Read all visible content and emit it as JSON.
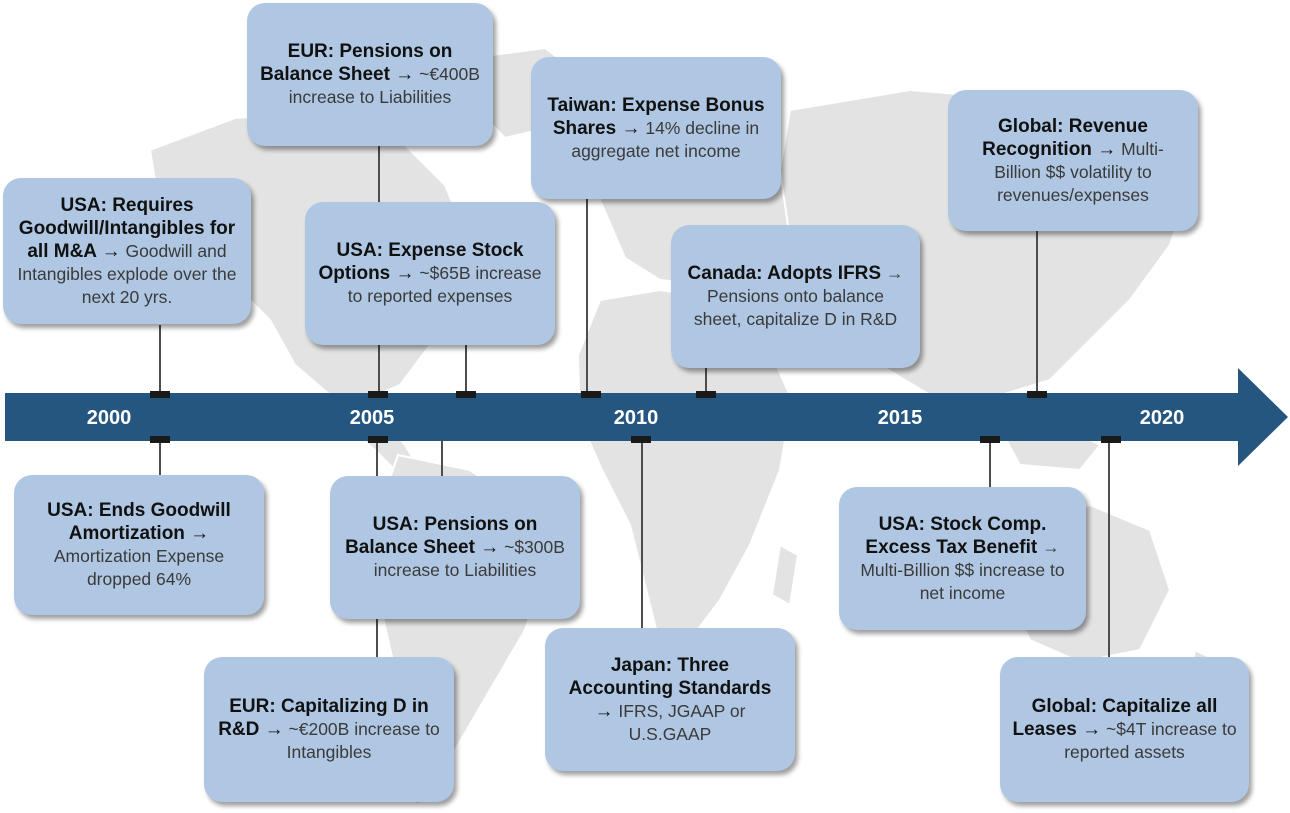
{
  "timeline": {
    "axis_color": "#245680",
    "years": [
      "2000",
      "2005",
      "2010",
      "2015",
      "2020"
    ]
  },
  "events": {
    "eur_pensions": {
      "headline": "EUR: Pensions on Balance Sheet →",
      "detail": " ~€400B increase to Liabilities"
    },
    "taiwan_bonus": {
      "headline": "Taiwan: Expense Bonus Shares →",
      "detail": " 14% decline in aggregate net income"
    },
    "global_revenue": {
      "headline": "Global: Revenue Recognition →",
      "detail": " Multi-Billion $$ volatility to revenues/expenses"
    },
    "usa_goodwill": {
      "headline": "USA: Requires Goodwill/Intangibles for all M&A →",
      "detail": " Goodwill and Intangibles explode over the next 20 yrs."
    },
    "usa_stock_options": {
      "headline": "USA: Expense Stock Options →",
      "detail": " ~$65B increase to reported expenses"
    },
    "canada_ifrs": {
      "headline": "Canada: Adopts IFRS",
      "detail": " → Pensions onto balance sheet, capitalize D in R&D"
    },
    "usa_amortization": {
      "headline": "USA: Ends Goodwill Amortization →",
      "detail": " Amortization Expense dropped 64%"
    },
    "usa_pensions": {
      "headline": "USA: Pensions on Balance Sheet →",
      "detail": " ~$300B increase to Liabilities"
    },
    "usa_stock_comp": {
      "headline": "USA: Stock Comp. Excess Tax Benefit",
      "detail": " → Multi-Billion $$ increase to net income"
    },
    "eur_rd": {
      "headline": "EUR: Capitalizing D in R&D →",
      "detail": " ~€200B increase to Intangibles"
    },
    "japan_standards": {
      "headline": "Japan: Three Accounting Standards →",
      "detail": " IFRS, JGAAP or U.S.GAAP"
    },
    "global_leases": {
      "headline": "Global: Capitalize all Leases →",
      "detail": " ~$4T increase to reported assets"
    }
  }
}
